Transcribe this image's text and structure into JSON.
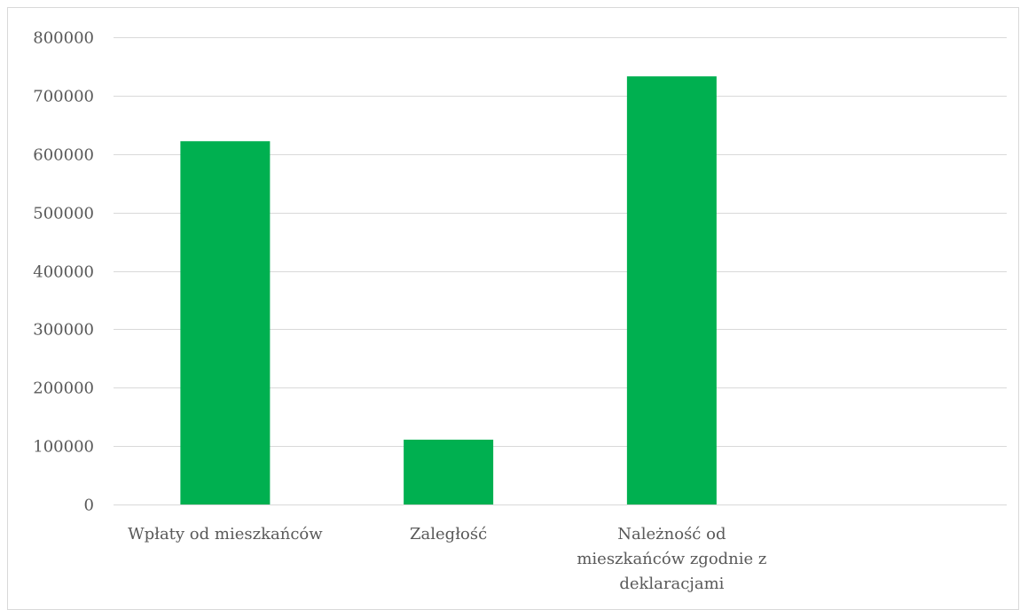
{
  "chart_data": {
    "type": "bar",
    "categories": [
      "Wpłaty od mieszkańców",
      "Zaległość",
      "Należność od mieszkańców zgodnie z deklaracjami"
    ],
    "category_label_lines": [
      [
        "Wpłaty od mieszkańców"
      ],
      [
        "Zaległość"
      ],
      [
        "Należność od",
        "mieszkańców zgodnie z",
        "deklaracjami"
      ]
    ],
    "values": [
      622000,
      111000,
      733000
    ],
    "ylim": [
      0,
      800000
    ],
    "yticks": [
      0,
      100000,
      200000,
      300000,
      400000,
      500000,
      600000,
      700000,
      800000
    ],
    "ytick_labels": [
      "0",
      "100000",
      "200000",
      "300000",
      "400000",
      "500000",
      "600000",
      "700000",
      "800000"
    ],
    "grid": true,
    "legend": "none",
    "title": "",
    "xlabel": "",
    "ylabel": "",
    "colors": {
      "bar": "#00b050",
      "grid": "#d9d9d9",
      "text": "#595959"
    }
  }
}
